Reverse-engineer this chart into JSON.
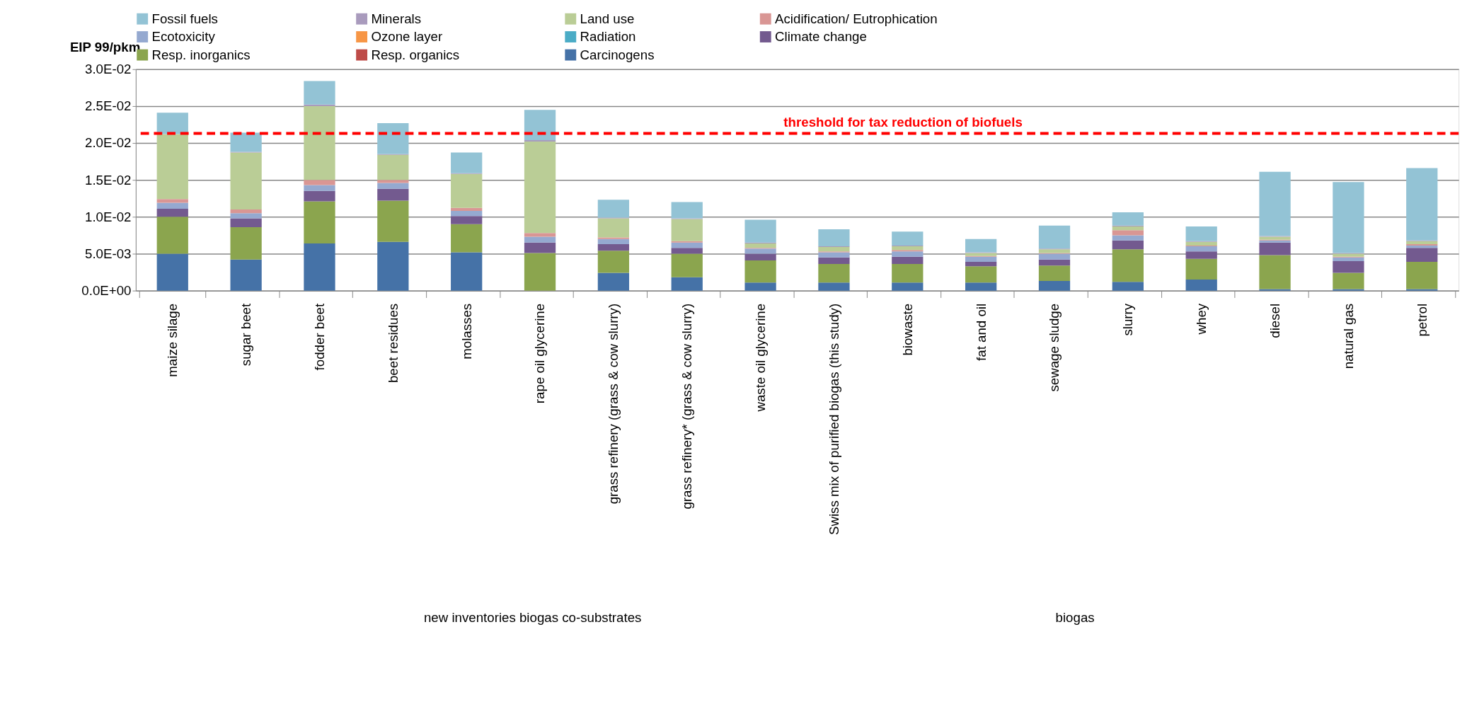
{
  "chart_data": {
    "type": "bar",
    "stacked": true,
    "ylabel": "EIP 99/pkm",
    "legend": "top",
    "grid": "y",
    "categories": [
      "maize silage",
      "sugar beet",
      "fodder beet",
      "beet residues",
      "molasses",
      "rape oil glycerine",
      "grass refinery (grass & cow slurry)",
      "grass refinery* (grass & cow slurry)",
      "waste oil glycerine",
      "Swiss mix of purified biogas (this study)",
      "biowaste",
      "fat and oil",
      "sewage sludge",
      "slurry",
      "whey",
      "diesel",
      "natural gas",
      "petrol"
    ],
    "ylim": [
      0,
      0.03
    ],
    "yticks": [
      {
        "value": 0,
        "label": "0.0E+00"
      },
      {
        "value": 0.005,
        "label": "5.0E-03"
      },
      {
        "value": 0.01,
        "label": "1.0E-02"
      },
      {
        "value": 0.015,
        "label": "1.5E-02"
      },
      {
        "value": 0.02,
        "label": "2.0E-02"
      },
      {
        "value": 0.025,
        "label": "2.5E-02"
      },
      {
        "value": 0.03,
        "label": "3.0E-02"
      }
    ],
    "series": [
      {
        "name": "Carcinogens",
        "color": "#4572a7",
        "values": [
          0.005,
          0.0042,
          0.0064,
          0.0066,
          0.0052,
          0,
          0.0024,
          0.0018,
          0.0011,
          0.0011,
          0.0011,
          0.0011,
          0.0013,
          0.0012,
          0.0015,
          0.0002,
          0.0002,
          0.0002
        ]
      },
      {
        "name": "Resp. organics",
        "color": "#be4b48",
        "values": [
          0,
          0,
          0,
          0,
          0,
          0,
          0,
          0,
          0,
          0,
          0,
          0,
          0,
          0,
          0,
          0,
          0,
          0
        ]
      },
      {
        "name": "Resp. inorganics",
        "color": "#8ba54e",
        "values": [
          0.005,
          0.0044,
          0.0057,
          0.0056,
          0.0038,
          0.0051,
          0.003,
          0.0032,
          0.003,
          0.0025,
          0.0025,
          0.0022,
          0.0021,
          0.0044,
          0.0028,
          0.0046,
          0.0022,
          0.0037
        ]
      },
      {
        "name": "Climate change",
        "color": "#735a8f",
        "values": [
          0.0011,
          0.0012,
          0.0014,
          0.0016,
          0.0011,
          0.0014,
          0.0009,
          0.0008,
          0.0009,
          0.0009,
          0.001,
          0.0006,
          0.0008,
          0.0012,
          0.001,
          0.0017,
          0.0016,
          0.0019
        ]
      },
      {
        "name": "Radiation",
        "color": "#4bacc6",
        "values": [
          0,
          0,
          0,
          0,
          0,
          0,
          0,
          0,
          0,
          0,
          0,
          0,
          0,
          0,
          0,
          0,
          0,
          0
        ]
      },
      {
        "name": "Ozone layer",
        "color": "#f79646",
        "values": [
          0,
          0,
          0,
          0,
          0,
          0,
          0,
          0,
          0,
          0,
          0,
          0,
          0,
          0,
          0,
          0,
          0,
          0
        ]
      },
      {
        "name": "Ecotoxicity",
        "color": "#95a9d0",
        "values": [
          0.0008,
          0.0007,
          0.0008,
          0.0008,
          0.0007,
          0.0008,
          0.0007,
          0.0007,
          0.0007,
          0.0007,
          0.0007,
          0.0007,
          0.0008,
          0.0007,
          0.0007,
          0.0003,
          0.0005,
          0.0003
        ]
      },
      {
        "name": "Acidification/ Eutrophication",
        "color": "#d99694",
        "values": [
          0.0005,
          0.0005,
          0.0007,
          0.0004,
          0.0004,
          0.0005,
          0.0002,
          0.0002,
          0.0001,
          0.0001,
          0.0002,
          0.0001,
          0.0001,
          0.0007,
          0.0001,
          0.0001,
          0.0001,
          0.0002
        ]
      },
      {
        "name": "Land use",
        "color": "#bacd96",
        "values": [
          0.0088,
          0.0077,
          0.01,
          0.0034,
          0.0046,
          0.0124,
          0.0026,
          0.003,
          0.0006,
          0.0006,
          0.0005,
          0.0004,
          0.0005,
          0.0005,
          0.0005,
          0.0004,
          0.0004,
          0.0004
        ]
      },
      {
        "name": "Minerals",
        "color": "#a99bbd",
        "values": [
          null,
          0.0001,
          0.0002,
          0.0001,
          0.0001,
          0.0002,
          0.0001,
          0.0001,
          0.0001,
          0.0001,
          0.0001,
          0.0001,
          0.0001,
          0.0001,
          0.0001,
          0.0001,
          0.0001,
          0.0001
        ]
      },
      {
        "name": "Fossil fuels",
        "color": "#93c3d5",
        "values": [
          0.0029,
          0.0026,
          0.0032,
          0.0042,
          0.0028,
          0.0041,
          0.0024,
          0.0022,
          0.0031,
          0.0023,
          0.0019,
          0.0018,
          0.0031,
          0.0018,
          0.002,
          0.0087,
          0.0096,
          0.0098
        ]
      }
    ],
    "ref_lines": [
      {
        "axis": "y",
        "value": 0.0213,
        "label": "threshold for tax reduction of biofuels",
        "color": "#ff0000",
        "line_style": "dashed"
      }
    ],
    "annotations": [
      "new inventories biogas co-substrates",
      "biogas"
    ]
  }
}
